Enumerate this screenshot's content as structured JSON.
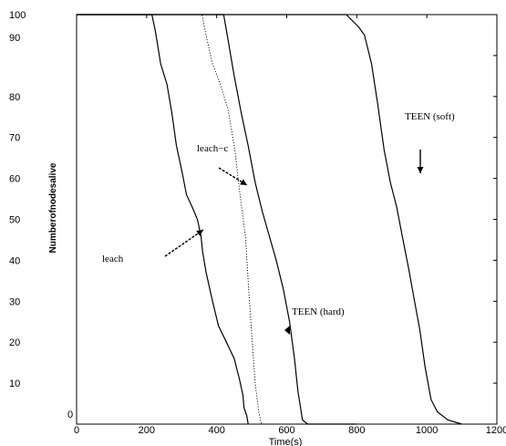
{
  "chart_data": {
    "type": "line",
    "title": "",
    "xlabel": "Time(s)",
    "ylabel": "Numberofnodesalive",
    "xlim": [
      0,
      1200
    ],
    "ylim": [
      0,
      100
    ],
    "x_ticks": [
      "0",
      "200",
      "400",
      "600",
      "800",
      "1000",
      "1200"
    ],
    "y_ticks": [
      "0",
      "10",
      "20",
      "30",
      "40",
      "50",
      "60",
      "70",
      "80",
      "90",
      "100"
    ],
    "grid": false,
    "series": [
      {
        "name": "leach",
        "style": "solid",
        "color": "#000000",
        "points": [
          [
            0,
            100
          ],
          [
            215,
            100
          ],
          [
            225,
            96
          ],
          [
            240,
            88
          ],
          [
            258,
            83
          ],
          [
            272,
            76
          ],
          [
            285,
            68
          ],
          [
            300,
            62
          ],
          [
            314,
            56
          ],
          [
            330,
            53
          ],
          [
            345,
            50
          ],
          [
            355,
            46
          ],
          [
            360,
            42
          ],
          [
            370,
            37
          ],
          [
            388,
            30
          ],
          [
            405,
            24
          ],
          [
            428,
            20
          ],
          [
            450,
            16
          ],
          [
            465,
            11
          ],
          [
            475,
            7
          ],
          [
            478,
            4
          ],
          [
            486,
            2
          ],
          [
            490,
            0
          ]
        ]
      },
      {
        "name": "leach-c",
        "style": "dotted",
        "color": "#000000",
        "points": [
          [
            0,
            100
          ],
          [
            358,
            100
          ],
          [
            372,
            94
          ],
          [
            388,
            88
          ],
          [
            410,
            83
          ],
          [
            432,
            77
          ],
          [
            452,
            67
          ],
          [
            468,
            55
          ],
          [
            482,
            46
          ],
          [
            492,
            32
          ],
          [
            500,
            22
          ],
          [
            510,
            10
          ],
          [
            520,
            3
          ],
          [
            528,
            0
          ]
        ]
      },
      {
        "name": "TEEN (hard)",
        "style": "solid",
        "color": "#000000",
        "points": [
          [
            0,
            100
          ],
          [
            420,
            100
          ],
          [
            432,
            94
          ],
          [
            450,
            85
          ],
          [
            470,
            76
          ],
          [
            490,
            68
          ],
          [
            510,
            59
          ],
          [
            530,
            52
          ],
          [
            550,
            46
          ],
          [
            570,
            40
          ],
          [
            590,
            33
          ],
          [
            608,
            25
          ],
          [
            622,
            16
          ],
          [
            632,
            8
          ],
          [
            645,
            1
          ],
          [
            660,
            0
          ],
          [
            800,
            0
          ]
        ]
      },
      {
        "name": "TEEN (soft)",
        "style": "solid",
        "color": "#000000",
        "points": [
          [
            0,
            100
          ],
          [
            770,
            100
          ],
          [
            805,
            97
          ],
          [
            822,
            95
          ],
          [
            842,
            88
          ],
          [
            860,
            78
          ],
          [
            878,
            67
          ],
          [
            896,
            59
          ],
          [
            914,
            53
          ],
          [
            932,
            45
          ],
          [
            948,
            38
          ],
          [
            965,
            30
          ],
          [
            980,
            23
          ],
          [
            995,
            14
          ],
          [
            1012,
            6
          ],
          [
            1030,
            3
          ],
          [
            1060,
            1
          ],
          [
            1100,
            0
          ]
        ]
      }
    ],
    "annotations": [
      {
        "text": "leach",
        "target_series": "leach"
      },
      {
        "text": "leach−c",
        "target_series": "leach-c"
      },
      {
        "text": "TEEN (hard)",
        "target_series": "TEEN (hard)"
      },
      {
        "text": "TEEN (soft)",
        "target_series": "TEEN (soft)"
      }
    ]
  }
}
